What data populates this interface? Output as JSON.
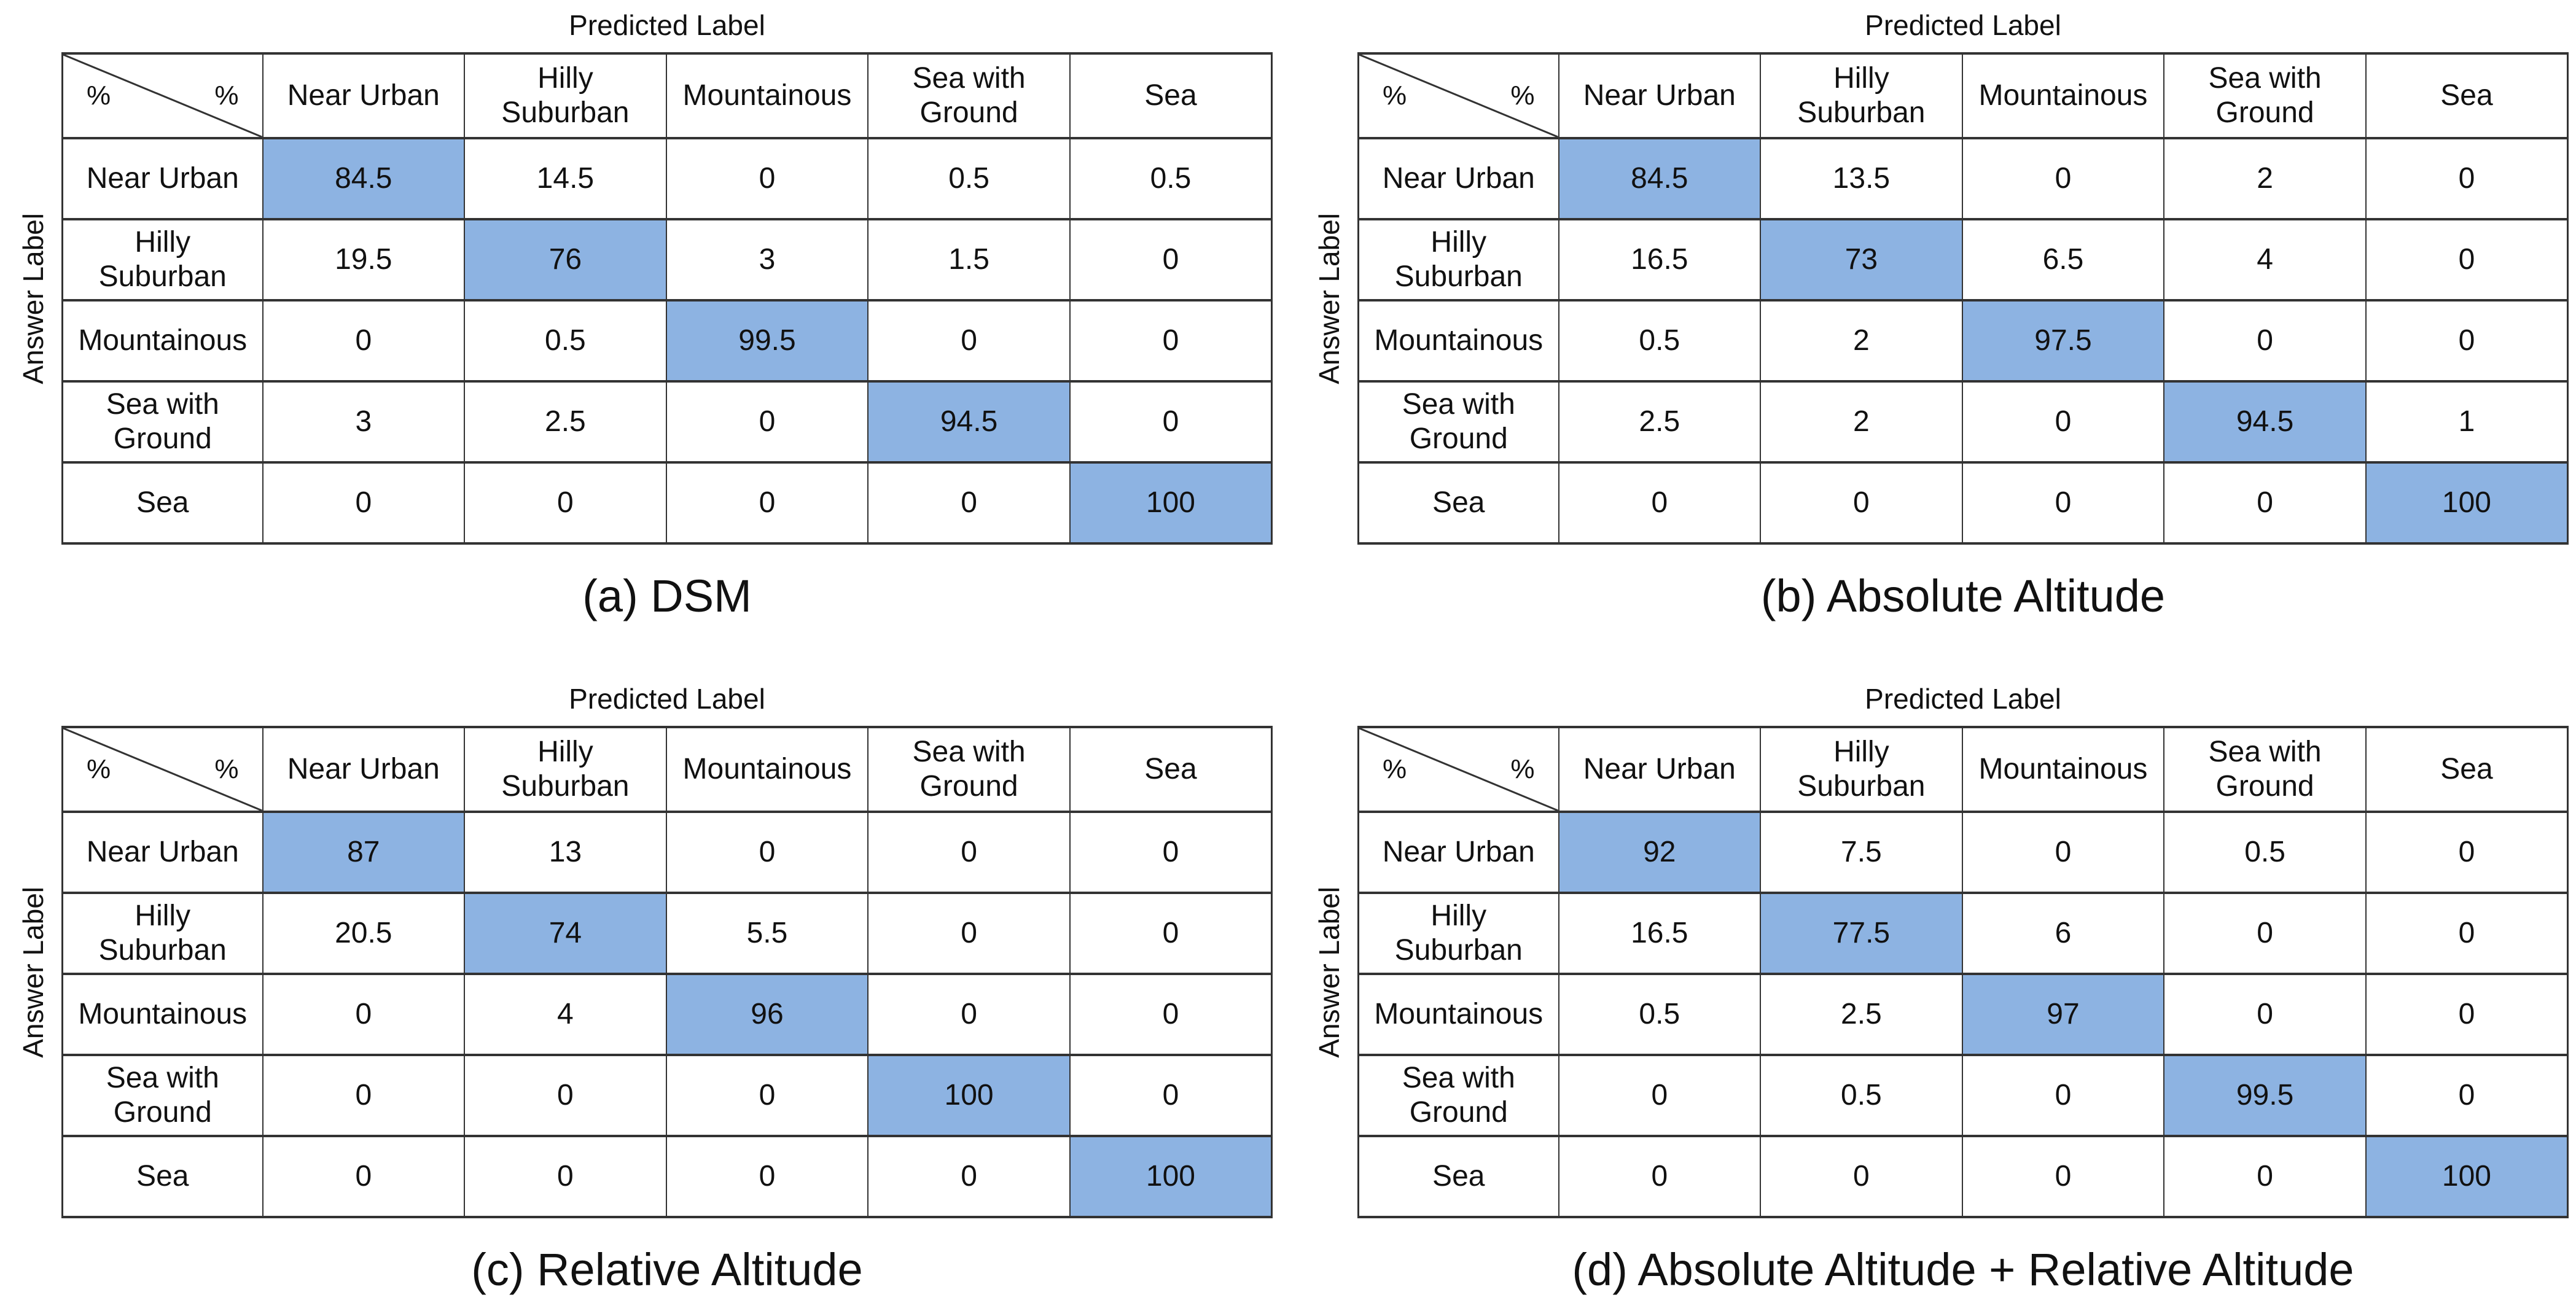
{
  "figure": {
    "corner_left": "%",
    "corner_right": "%"
  },
  "colors": {
    "diagonal_highlight": "#8db3e2",
    "grid_line": "#333333",
    "text": "#111111",
    "background": "#ffffff"
  },
  "chart_data": [
    {
      "type": "heatmap",
      "panel": "a",
      "title": "(a) DSM",
      "xlabel": "Predicted Label",
      "ylabel": "Answer Label",
      "units": "%",
      "highlighted_cells": "main-diagonal",
      "x_categories": [
        "Near Urban",
        "Hilly Suburban",
        "Mountainous",
        "Sea with Ground",
        "Sea"
      ],
      "y_categories": [
        "Near Urban",
        "Hilly Suburban",
        "Mountainous",
        "Sea with Ground",
        "Sea"
      ],
      "values": [
        [
          84.5,
          14.5,
          0,
          0.5,
          0.5
        ],
        [
          19.5,
          76,
          3,
          1.5,
          0
        ],
        [
          0,
          0.5,
          99.5,
          0,
          0
        ],
        [
          3,
          2.5,
          0,
          94.5,
          0
        ],
        [
          0,
          0,
          0,
          0,
          100
        ]
      ]
    },
    {
      "type": "heatmap",
      "panel": "b",
      "title": "(b) Absolute Altitude",
      "xlabel": "Predicted Label",
      "ylabel": "Answer Label",
      "units": "%",
      "highlighted_cells": "main-diagonal",
      "x_categories": [
        "Near Urban",
        "Hilly Suburban",
        "Mountainous",
        "Sea with Ground",
        "Sea"
      ],
      "y_categories": [
        "Near Urban",
        "Hilly Suburban",
        "Mountainous",
        "Sea with Ground",
        "Sea"
      ],
      "values": [
        [
          84.5,
          13.5,
          0,
          2,
          0
        ],
        [
          16.5,
          73,
          6.5,
          4,
          0
        ],
        [
          0.5,
          2,
          97.5,
          0,
          0
        ],
        [
          2.5,
          2,
          0,
          94.5,
          1
        ],
        [
          0,
          0,
          0,
          0,
          100
        ]
      ]
    },
    {
      "type": "heatmap",
      "panel": "c",
      "title": "(c) Relative Altitude",
      "xlabel": "Predicted Label",
      "ylabel": "Answer Label",
      "units": "%",
      "highlighted_cells": "main-diagonal",
      "x_categories": [
        "Near Urban",
        "Hilly Suburban",
        "Mountainous",
        "Sea with Ground",
        "Sea"
      ],
      "y_categories": [
        "Near Urban",
        "Hilly Suburban",
        "Mountainous",
        "Sea with Ground",
        "Sea"
      ],
      "values": [
        [
          87,
          13,
          0,
          0,
          0
        ],
        [
          20.5,
          74,
          5.5,
          0,
          0
        ],
        [
          0,
          4,
          96,
          0,
          0
        ],
        [
          0,
          0,
          0,
          100,
          0
        ],
        [
          0,
          0,
          0,
          0,
          100
        ]
      ]
    },
    {
      "type": "heatmap",
      "panel": "d",
      "title": "(d) Absolute Altitude + Relative Altitude",
      "xlabel": "Predicted Label",
      "ylabel": "Answer Label",
      "units": "%",
      "highlighted_cells": "main-diagonal",
      "x_categories": [
        "Near Urban",
        "Hilly Suburban",
        "Mountainous",
        "Sea with Ground",
        "Sea"
      ],
      "y_categories": [
        "Near Urban",
        "Hilly Suburban",
        "Mountainous",
        "Sea with Ground",
        "Sea"
      ],
      "values": [
        [
          92,
          7.5,
          0,
          0.5,
          0
        ],
        [
          16.5,
          77.5,
          6,
          0,
          0
        ],
        [
          0.5,
          2.5,
          97,
          0,
          0
        ],
        [
          0,
          0.5,
          0,
          99.5,
          0
        ],
        [
          0,
          0,
          0,
          0,
          100
        ]
      ]
    }
  ]
}
